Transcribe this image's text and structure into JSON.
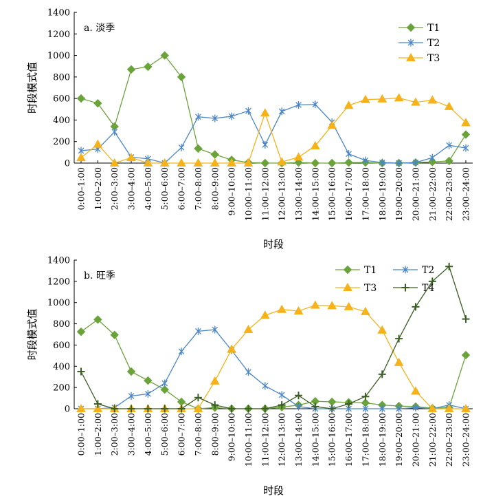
{
  "chart_data": [
    {
      "type": "line",
      "title": "a. 淡季",
      "xlabel": "时段",
      "ylabel": "时段模式值",
      "ylim": [
        0,
        1400
      ],
      "yticks": [
        0,
        200,
        400,
        600,
        800,
        1000,
        1200,
        1400
      ],
      "legend_position": "top-right",
      "categories": [
        "0:00–1:00",
        "1:00–2:00",
        "2:00–3:00",
        "3:00–4:00",
        "4:00–5:00",
        "5:00–6:00",
        "6:00–7:00",
        "7:00–8:00",
        "8:00–9:00",
        "9:00–10:00",
        "10:00–11:00",
        "11:00–12:00",
        "12:00–13:00",
        "13:00–14:00",
        "14:00–15:00",
        "15:00–16:00",
        "16:00–17:00",
        "17:00–18:00",
        "18:00–19:00",
        "19:00–20:00",
        "20:00–21:00",
        "21:00–22:00",
        "22:00–23:00",
        "23:00–24:00"
      ],
      "series": [
        {
          "name": "T1",
          "color": "#6aa33a",
          "marker": "diamond",
          "values": [
            600,
            555,
            340,
            870,
            895,
            1000,
            800,
            135,
            80,
            30,
            5,
            0,
            0,
            5,
            0,
            0,
            5,
            5,
            0,
            0,
            5,
            10,
            20,
            265
          ]
        },
        {
          "name": "T2",
          "color": "#4a86c8",
          "marker": "asterisk",
          "values": [
            115,
            130,
            290,
            55,
            40,
            0,
            145,
            430,
            415,
            435,
            485,
            170,
            480,
            540,
            545,
            380,
            85,
            25,
            5,
            0,
            5,
            50,
            165,
            140
          ]
        },
        {
          "name": "T3",
          "color": "#f5b21a",
          "marker": "triangle",
          "values": [
            50,
            175,
            0,
            50,
            0,
            0,
            0,
            0,
            0,
            0,
            0,
            465,
            10,
            55,
            160,
            350,
            535,
            590,
            595,
            605,
            565,
            585,
            525,
            375
          ]
        }
      ]
    },
    {
      "type": "line",
      "title": "b. 旺季",
      "xlabel": "时段",
      "ylabel": "时段模式值",
      "ylim": [
        0,
        1400
      ],
      "yticks": [
        0,
        200,
        400,
        600,
        800,
        1000,
        1200,
        1400
      ],
      "legend_position": "top-right",
      "categories": [
        "0:00–1:00",
        "1:00–2:00",
        "2:00–3:00",
        "3:00–4:00",
        "4:00–5:00",
        "5:00–6:00",
        "6:00–7:00",
        "7:00–8:00",
        "8:00–9:00",
        "9:00–10:00",
        "10:00–11:00",
        "11:00–12:00",
        "12:00–13:00",
        "13:00–14:00",
        "14:00–15:00",
        "15:00–16:00",
        "16:00–17:00",
        "17:00–18:00",
        "18:00–19:00",
        "19:00–20:00",
        "20:00–21:00",
        "21:00–22:00",
        "22:00–23:00",
        "23:00–24:00"
      ],
      "series": [
        {
          "name": "T1",
          "color": "#6aa33a",
          "marker": "diamond",
          "values": [
            725,
            840,
            695,
            350,
            265,
            180,
            65,
            0,
            10,
            0,
            0,
            0,
            15,
            35,
            70,
            65,
            60,
            55,
            35,
            25,
            20,
            5,
            10,
            505
          ]
        },
        {
          "name": "T2",
          "color": "#4a86c8",
          "marker": "asterisk",
          "values": [
            0,
            0,
            10,
            120,
            140,
            240,
            540,
            730,
            745,
            550,
            345,
            215,
            130,
            20,
            0,
            0,
            0,
            0,
            0,
            0,
            10,
            0,
            35,
            0
          ]
        },
        {
          "name": "T3",
          "color": "#f5b21a",
          "marker": "triangle",
          "values": [
            0,
            0,
            0,
            0,
            0,
            0,
            0,
            0,
            260,
            560,
            745,
            880,
            935,
            920,
            975,
            970,
            960,
            915,
            740,
            435,
            165,
            0,
            0,
            0
          ]
        },
        {
          "name": "T4",
          "color": "#3b5e24",
          "marker": "plus",
          "values": [
            350,
            45,
            0,
            0,
            0,
            0,
            0,
            105,
            35,
            0,
            0,
            0,
            35,
            125,
            20,
            0,
            45,
            115,
            325,
            660,
            960,
            1200,
            1340,
            845
          ]
        }
      ]
    }
  ]
}
